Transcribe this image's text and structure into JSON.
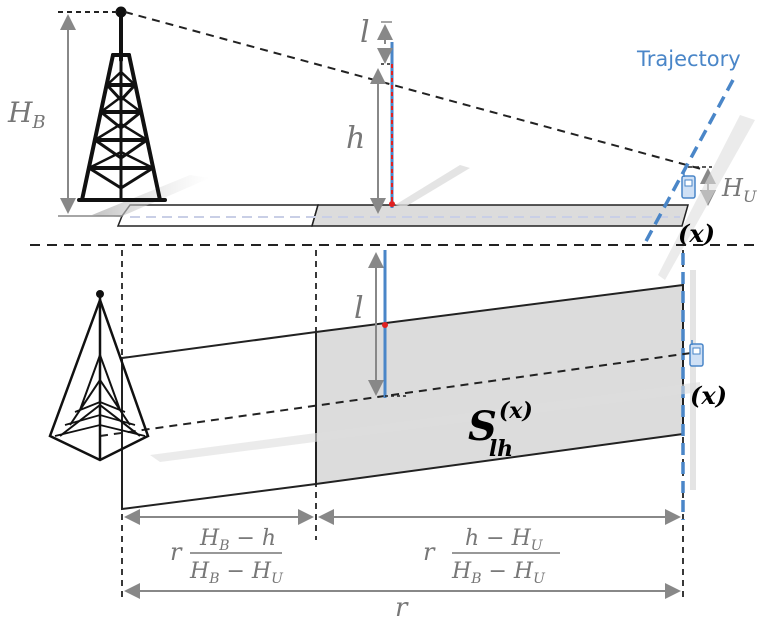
{
  "labels": {
    "trajectory": "Trajectory",
    "h_b_main": "H",
    "h_b_sub": "B",
    "h_u_main": "H",
    "h_u_sub": "U",
    "l_top": "l",
    "h": "h",
    "l_mid": "l",
    "x_upper": "(𝒙)",
    "x_lower": "(𝒙)",
    "s_main": "S",
    "s_sup": "(x)",
    "s_sub": "lh",
    "r_bottom": "r",
    "frac1_coef": "r",
    "frac1_num": "H",
    "frac1_num_sub": "B",
    "frac1_num_rest": " − h",
    "frac1_den": "H",
    "frac1_den_sub1": "B",
    "frac1_den_mid": " − H",
    "frac1_den_sub2": "U",
    "frac2_coef": "r",
    "frac2_num": "h − H",
    "frac2_num_sub": "U",
    "frac2_den": "H",
    "frac2_den_sub1": "B",
    "frac2_den_mid": " − H",
    "frac2_den_sub2": "U"
  },
  "colors": {
    "accent_blue": "#4a86c8",
    "gray": "#888888",
    "shade": "#dcdcdc",
    "marker_red": "#e02020"
  },
  "icons": [
    "tower-icon",
    "tower-topview-icon",
    "phone-icon"
  ]
}
